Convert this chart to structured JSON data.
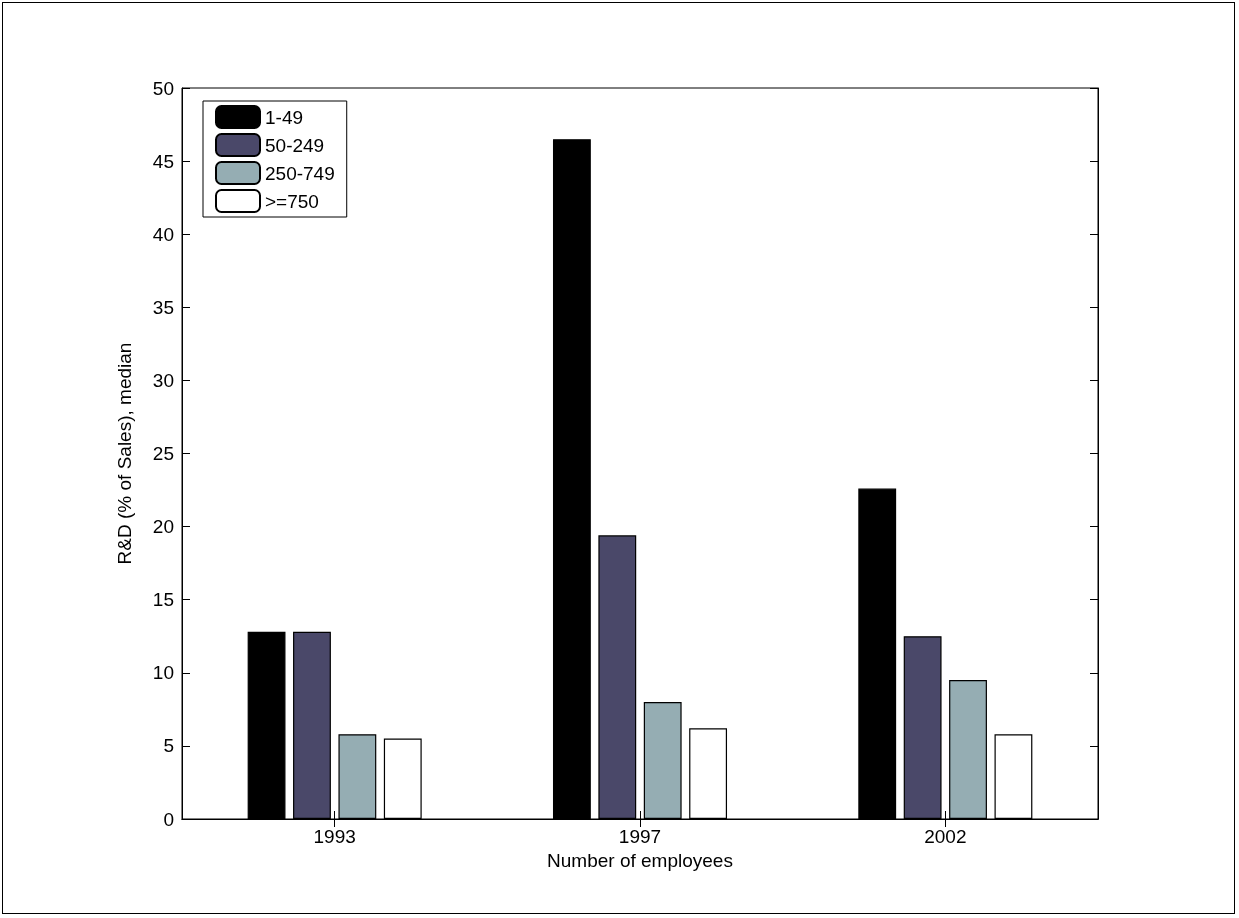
{
  "chart_data": {
    "type": "bar",
    "xlabel": "Number of employees",
    "ylabel": "R&D (% of Sales), median",
    "categories": [
      "1993",
      "1997",
      "2002"
    ],
    "series": [
      {
        "name": "1-49",
        "color": "#000000",
        "values": [
          12.8,
          46.5,
          22.6
        ]
      },
      {
        "name": "50-249",
        "color": "#4a4869",
        "values": [
          12.8,
          19.4,
          12.5
        ]
      },
      {
        "name": "250-749",
        "color": "#95adb3",
        "values": [
          5.8,
          8.0,
          9.5
        ]
      },
      {
        "name": ">=750",
        "color": "#ffffff",
        "values": [
          5.5,
          6.2,
          5.8
        ]
      }
    ],
    "ylim": [
      0,
      50
    ],
    "yticks": [
      0,
      5,
      10,
      15,
      20,
      25,
      30,
      35,
      40,
      45,
      50
    ],
    "grid": false,
    "legend": "top left"
  }
}
